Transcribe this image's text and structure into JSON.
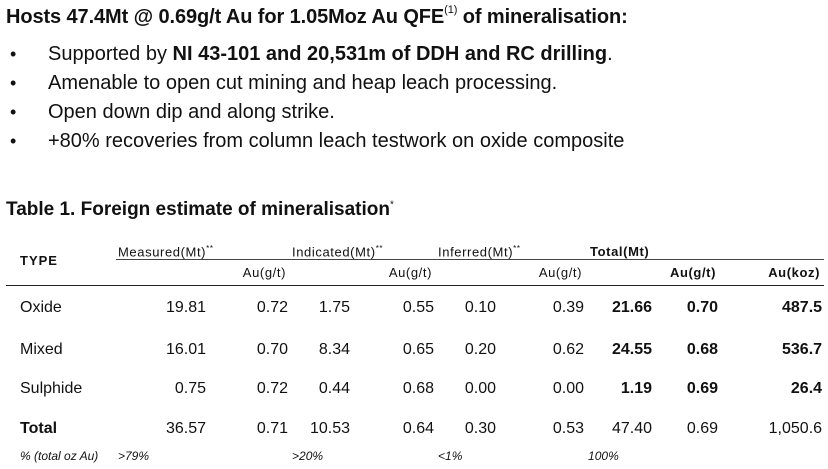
{
  "headline": {
    "text": "Hosts 47.4Mt @ 0.69g/t Au for 1.05Moz Au QFE",
    "superscript": "(1)",
    "suffix": " of mineralisation:"
  },
  "bullets": [
    {
      "before": "Supported by ",
      "bold": "NI 43-101 and 20,531m of DDH and RC drilling",
      "after": "."
    },
    {
      "before": "Amenable to open cut mining and heap leach processing.",
      "bold": "",
      "after": ""
    },
    {
      "before": "Open down dip and along strike.",
      "bold": "",
      "after": ""
    },
    {
      "before": "+80% recoveries from column leach testwork on oxide composite",
      "bold": "",
      "after": ""
    }
  ],
  "bullet_glyph": "•",
  "table_caption": {
    "text": "Table 1. Foreign estimate of mineralisation",
    "superscript": "*"
  },
  "table": {
    "type_header": "TYPE",
    "groups": {
      "measured": "Measured(Mt)",
      "indicated": "Indicated(Mt)",
      "inferred": "Inferred(Mt)",
      "total": "Total(Mt)",
      "group_sup": "**"
    },
    "sub_headers": {
      "au_gt": "Au(g/t)",
      "au_koz": "Au(koz)"
    },
    "rows": [
      {
        "type": "Oxide",
        "values": [
          "19.81",
          "0.72",
          "1.75",
          "0.55",
          "0.10",
          "0.39",
          "21.66",
          "0.70",
          "487.5"
        ]
      },
      {
        "type": "Mixed",
        "values": [
          "16.01",
          "0.70",
          "8.34",
          "0.65",
          "0.20",
          "0.62",
          "24.55",
          "0.68",
          "536.7"
        ]
      },
      {
        "type": "Sulphide",
        "values": [
          "0.75",
          "0.72",
          "0.44",
          "0.68",
          "0.00",
          "0.00",
          "1.19",
          "0.69",
          "26.4"
        ]
      }
    ],
    "total_row": {
      "type": "Total",
      "values": [
        "36.57",
        "0.71",
        "10.53",
        "0.64",
        "0.30",
        "0.53",
        "47.40",
        "0.69",
        "1,050.6"
      ]
    },
    "pct_row": {
      "label": "% (total oz Au)",
      "measured": ">79%",
      "indicated": ">20%",
      "inferred": "<1%",
      "total": "100%"
    }
  }
}
